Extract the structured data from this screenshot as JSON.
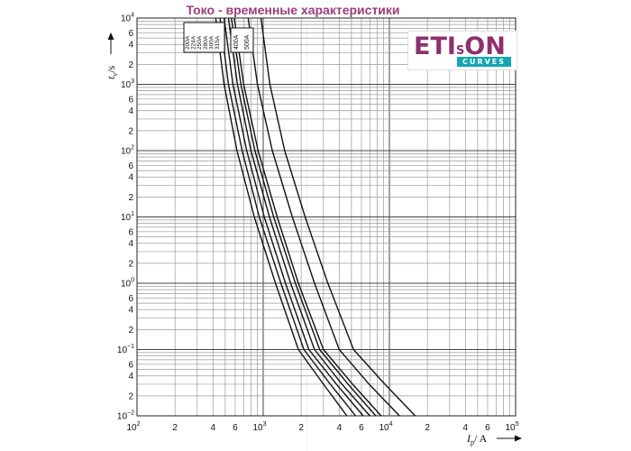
{
  "page": {
    "title": "Токо - временные характеристики"
  },
  "logo": {
    "main_prefix": "ETI",
    "main_small": "S",
    "main_suffix": "ON",
    "sub": "CURVES"
  },
  "chart_data": {
    "type": "line",
    "x_scale": "log",
    "y_scale": "log",
    "xlim": [
      100,
      100000
    ],
    "ylim": [
      0.01,
      10000
    ],
    "xlabel_main": "I",
    "xlabel_sub": "p",
    "xlabel_unit": "/ A",
    "ylabel_main": "t",
    "ylabel_sub": "v",
    "ylabel_unit": "/s",
    "grid": true,
    "x_ticks": [
      {
        "value": 100,
        "label": "10",
        "exp": "2"
      },
      {
        "value": 200,
        "label": "2",
        "exp": ""
      },
      {
        "value": 400,
        "label": "4",
        "exp": ""
      },
      {
        "value": 600,
        "label": "6",
        "exp": ""
      },
      {
        "value": 1000,
        "label": "10",
        "exp": "3"
      },
      {
        "value": 2000,
        "label": "2",
        "exp": ""
      },
      {
        "value": 4000,
        "label": "4",
        "exp": ""
      },
      {
        "value": 6000,
        "label": "6",
        "exp": ""
      },
      {
        "value": 10000,
        "label": "10",
        "exp": "4"
      },
      {
        "value": 20000,
        "label": "2",
        "exp": ""
      },
      {
        "value": 40000,
        "label": "4",
        "exp": ""
      },
      {
        "value": 60000,
        "label": "6",
        "exp": ""
      },
      {
        "value": 100000,
        "label": "10",
        "exp": "5"
      }
    ],
    "y_ticks": [
      {
        "value": 10000,
        "label": "10",
        "exp": "4"
      },
      {
        "value": 6000,
        "label": "6",
        "exp": ""
      },
      {
        "value": 4000,
        "label": "4",
        "exp": ""
      },
      {
        "value": 2000,
        "label": "2",
        "exp": ""
      },
      {
        "value": 1000,
        "label": "10",
        "exp": "3"
      },
      {
        "value": 600,
        "label": "6",
        "exp": ""
      },
      {
        "value": 400,
        "label": "4",
        "exp": ""
      },
      {
        "value": 200,
        "label": "2",
        "exp": ""
      },
      {
        "value": 100,
        "label": "10",
        "exp": "2"
      },
      {
        "value": 60,
        "label": "6",
        "exp": ""
      },
      {
        "value": 40,
        "label": "4",
        "exp": ""
      },
      {
        "value": 20,
        "label": "2",
        "exp": ""
      },
      {
        "value": 10,
        "label": "10",
        "exp": "1"
      },
      {
        "value": 6,
        "label": "6",
        "exp": ""
      },
      {
        "value": 4,
        "label": "4",
        "exp": ""
      },
      {
        "value": 2,
        "label": "2",
        "exp": ""
      },
      {
        "value": 1,
        "label": "10",
        "exp": "0"
      },
      {
        "value": 0.6,
        "label": "6",
        "exp": ""
      },
      {
        "value": 0.4,
        "label": "4",
        "exp": ""
      },
      {
        "value": 0.2,
        "label": "2",
        "exp": ""
      },
      {
        "value": 0.1,
        "label": "10",
        "exp": "−1"
      },
      {
        "value": 0.06,
        "label": "6",
        "exp": ""
      },
      {
        "value": 0.04,
        "label": "4",
        "exp": ""
      },
      {
        "value": 0.02,
        "label": "2",
        "exp": ""
      },
      {
        "value": 0.01,
        "label": "10",
        "exp": "−2"
      }
    ],
    "series": [
      {
        "name": "200A",
        "points": [
          [
            420,
            10000
          ],
          [
            490,
            1000
          ],
          [
            620,
            100
          ],
          [
            850,
            10
          ],
          [
            1250,
            1
          ],
          [
            1900,
            0.1
          ],
          [
            3000,
            0.03
          ],
          [
            4600,
            0.01
          ]
        ]
      },
      {
        "name": "224A",
        "points": [
          [
            455,
            10000
          ],
          [
            530,
            1000
          ],
          [
            680,
            100
          ],
          [
            930,
            10
          ],
          [
            1380,
            1
          ],
          [
            2100,
            0.1
          ],
          [
            3400,
            0.03
          ],
          [
            5400,
            0.01
          ]
        ]
      },
      {
        "name": "250A",
        "points": [
          [
            490,
            10000
          ],
          [
            575,
            1000
          ],
          [
            740,
            100
          ],
          [
            1020,
            10
          ],
          [
            1500,
            1
          ],
          [
            2300,
            0.1
          ],
          [
            3800,
            0.03
          ],
          [
            6200,
            0.01
          ]
        ]
      },
      {
        "name": "280A",
        "points": [
          [
            530,
            10000
          ],
          [
            625,
            1000
          ],
          [
            800,
            100
          ],
          [
            1120,
            10
          ],
          [
            1650,
            1
          ],
          [
            2550,
            0.1
          ],
          [
            4200,
            0.03
          ],
          [
            7000,
            0.01
          ]
        ]
      },
      {
        "name": "300A",
        "points": [
          [
            560,
            10000
          ],
          [
            665,
            1000
          ],
          [
            860,
            100
          ],
          [
            1210,
            10
          ],
          [
            1800,
            1
          ],
          [
            2800,
            0.1
          ],
          [
            4700,
            0.03
          ],
          [
            7800,
            0.01
          ]
        ]
      },
      {
        "name": "315A",
        "points": [
          [
            590,
            10000
          ],
          [
            700,
            1000
          ],
          [
            910,
            100
          ],
          [
            1290,
            10
          ],
          [
            1900,
            1
          ],
          [
            3000,
            0.1
          ],
          [
            5100,
            0.03
          ],
          [
            8600,
            0.01
          ]
        ]
      },
      {
        "name": "400A",
        "points": [
          [
            760,
            10000
          ],
          [
            900,
            1000
          ],
          [
            1180,
            100
          ],
          [
            1700,
            10
          ],
          [
            2550,
            1
          ],
          [
            4000,
            0.1
          ],
          [
            6900,
            0.03
          ],
          [
            12000,
            0.01
          ]
        ]
      },
      {
        "name": "500A",
        "points": [
          [
            960,
            10000
          ],
          [
            1130,
            1000
          ],
          [
            1480,
            100
          ],
          [
            2150,
            10
          ],
          [
            3250,
            1
          ],
          [
            5200,
            0.1
          ],
          [
            9200,
            0.03
          ],
          [
            16000,
            0.01
          ]
        ]
      }
    ]
  }
}
